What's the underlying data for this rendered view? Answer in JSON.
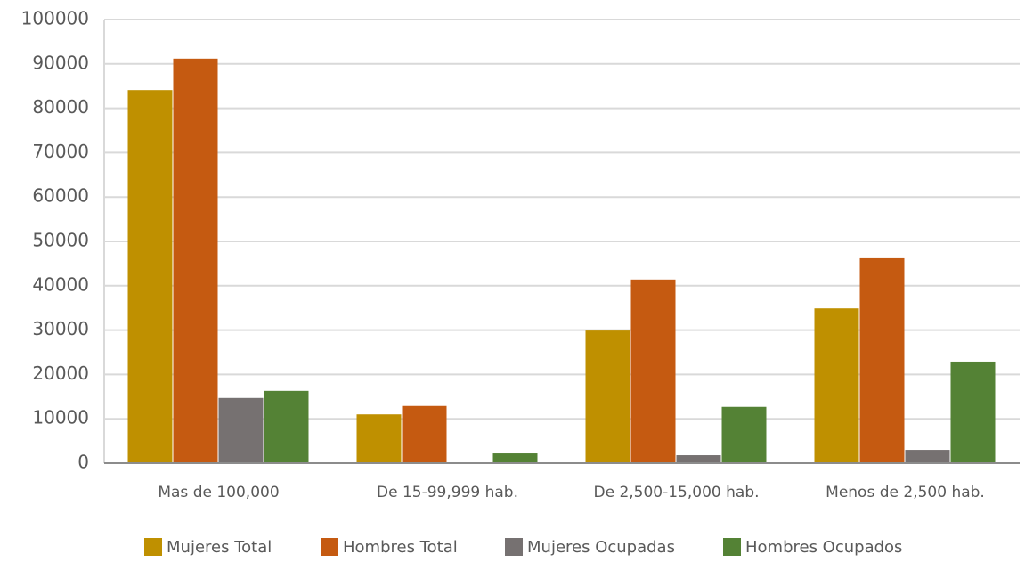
{
  "chart_data": {
    "type": "bar",
    "categories": [
      "Mas de 100,000",
      "De 15-99,999 hab.",
      "De 2,500-15,000 hab.",
      "Menos de 2,500 hab."
    ],
    "series": [
      {
        "name": "Mujeres Total",
        "color": "#bf9000",
        "values": [
          84100,
          11000,
          29900,
          34900
        ]
      },
      {
        "name": "Hombres Total",
        "color": "#c55a11",
        "values": [
          91200,
          12900,
          41400,
          46200
        ]
      },
      {
        "name": "Mujeres Ocupadas",
        "color": "#767171",
        "values": [
          14700,
          0,
          1800,
          3000
        ]
      },
      {
        "name": "Hombres Ocupados",
        "color": "#548235",
        "values": [
          16300,
          2200,
          12700,
          22900
        ]
      }
    ],
    "ylim": [
      0,
      100000
    ],
    "yticks": [
      0,
      10000,
      20000,
      30000,
      40000,
      50000,
      60000,
      70000,
      80000,
      90000,
      100000
    ],
    "grid": true,
    "legend": "bottom"
  }
}
